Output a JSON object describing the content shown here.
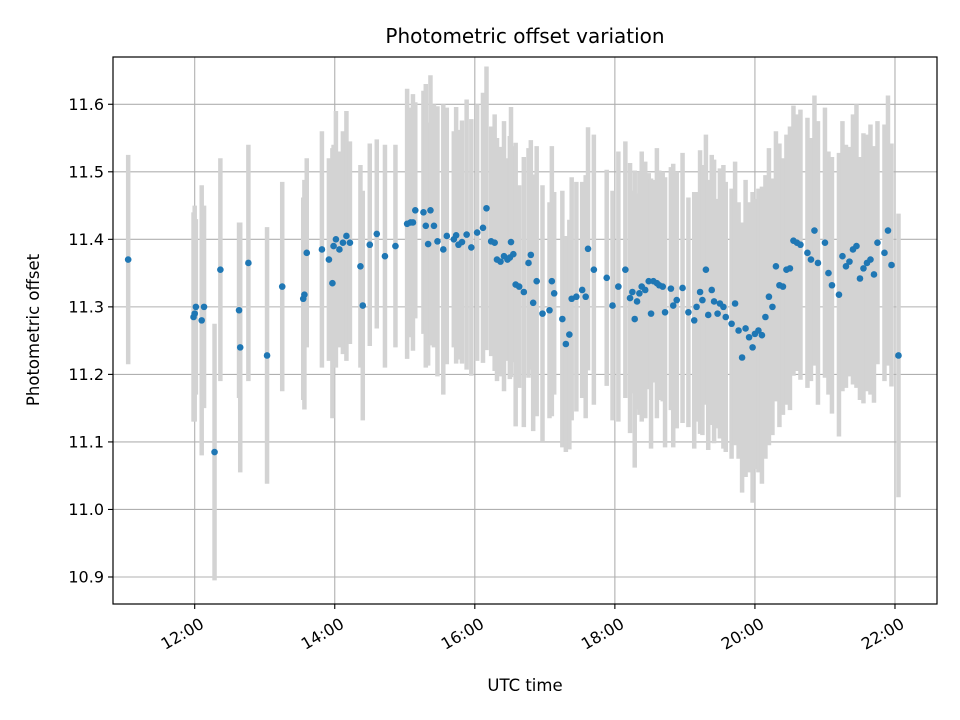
{
  "chart_data": {
    "type": "scatter",
    "title": "Photometric offset variation",
    "xlabel": "UTC time",
    "ylabel": "Photometric offset",
    "x_axis_type": "time",
    "xlim": [
      "10:50",
      "22:36"
    ],
    "ylim": [
      10.86,
      11.67
    ],
    "x_ticks": [
      "12:00",
      "14:00",
      "16:00",
      "18:00",
      "20:00",
      "22:00"
    ],
    "y_ticks": [
      10.9,
      11.0,
      11.1,
      11.2,
      11.3,
      11.4,
      11.5,
      11.6
    ],
    "y_tick_labels": [
      "10.9",
      "11.0",
      "11.1",
      "11.2",
      "11.3",
      "11.4",
      "11.5",
      "11.6"
    ],
    "grid": true,
    "colors": {
      "point": "#1f77b4",
      "errorbar": "#d3d3d3",
      "grid": "#b0b0b0"
    },
    "series": [
      {
        "x": [
          "11:03",
          "11:59",
          "12:00",
          "12:01",
          "12:06",
          "12:08",
          "12:17",
          "12:22",
          "12:38",
          "12:39",
          "12:46",
          "13:02",
          "13:15",
          "13:33",
          "13:34",
          "13:36",
          "13:49",
          "13:55",
          "13:58",
          "13:59",
          "14:01",
          "14:04",
          "14:07",
          "14:10",
          "14:13",
          "14:22",
          "14:24",
          "14:30",
          "14:36",
          "14:43",
          "14:52",
          "15:02",
          "15:05",
          "15:07",
          "15:09",
          "15:16",
          "15:18",
          "15:20",
          "15:22",
          "15:25",
          "15:28",
          "15:33",
          "15:36",
          "15:42",
          "15:44",
          "15:46",
          "15:49",
          "15:53",
          "15:57",
          "16:02",
          "16:07",
          "16:10",
          "16:14",
          "16:17",
          "16:19",
          "16:22",
          "16:25",
          "16:28",
          "16:30",
          "16:31",
          "16:33",
          "16:35",
          "16:38",
          "16:42",
          "16:46",
          "16:48",
          "16:50",
          "16:53",
          "16:58",
          "17:04",
          "17:06",
          "17:08",
          "17:15",
          "17:18",
          "17:21",
          "17:23",
          "17:27",
          "17:32",
          "17:35",
          "17:37",
          "17:42",
          "17:53",
          "17:58",
          "18:03",
          "18:09",
          "18:13",
          "18:15",
          "18:17",
          "18:19",
          "18:21",
          "18:23",
          "18:26",
          "18:29",
          "18:31",
          "18:33",
          "18:36",
          "18:38",
          "18:41",
          "18:43",
          "18:48",
          "18:50",
          "18:53",
          "18:58",
          "19:03",
          "19:08",
          "19:10",
          "19:13",
          "19:15",
          "19:18",
          "19:20",
          "19:23",
          "19:25",
          "19:28",
          "19:30",
          "19:33",
          "19:35",
          "19:40",
          "19:43",
          "19:46",
          "19:49",
          "19:52",
          "19:55",
          "19:58",
          "20:00",
          "20:03",
          "20:06",
          "20:09",
          "20:12",
          "20:15",
          "20:18",
          "20:21",
          "20:24",
          "20:27",
          "20:30",
          "20:33",
          "20:36",
          "20:39",
          "20:45",
          "20:48",
          "20:51",
          "20:54",
          "21:00",
          "21:03",
          "21:06",
          "21:12",
          "21:15",
          "21:18",
          "21:21",
          "21:24",
          "21:27",
          "21:30",
          "21:33",
          "21:36",
          "21:39",
          "21:42",
          "21:45",
          "21:51",
          "21:54",
          "21:57",
          "22:03"
        ],
        "y": [
          11.37,
          11.285,
          11.29,
          11.3,
          11.28,
          11.3,
          11.085,
          11.355,
          11.295,
          11.24,
          11.365,
          11.228,
          11.33,
          11.312,
          11.318,
          11.38,
          11.385,
          11.37,
          11.335,
          11.39,
          11.4,
          11.385,
          11.395,
          11.405,
          11.395,
          11.36,
          11.302,
          11.392,
          11.408,
          11.375,
          11.39,
          11.423,
          11.425,
          11.425,
          11.443,
          11.44,
          11.42,
          11.393,
          11.443,
          11.42,
          11.397,
          11.385,
          11.405,
          11.4,
          11.406,
          11.392,
          11.396,
          11.407,
          11.388,
          11.41,
          11.417,
          11.446,
          11.397,
          11.395,
          11.37,
          11.367,
          11.375,
          11.37,
          11.373,
          11.396,
          11.378,
          11.333,
          11.33,
          11.322,
          11.365,
          11.377,
          11.306,
          11.338,
          11.29,
          11.295,
          11.338,
          11.32,
          11.282,
          11.245,
          11.259,
          11.312,
          11.315,
          11.325,
          11.315,
          11.386,
          11.355,
          11.343,
          11.302,
          11.33,
          11.355,
          11.313,
          11.322,
          11.282,
          11.308,
          11.32,
          11.33,
          11.325,
          11.338,
          11.29,
          11.338,
          11.335,
          11.332,
          11.33,
          11.292,
          11.327,
          11.302,
          11.31,
          11.328,
          11.292,
          11.28,
          11.3,
          11.322,
          11.31,
          11.355,
          11.288,
          11.325,
          11.308,
          11.29,
          11.305,
          11.3,
          11.285,
          11.275,
          11.305,
          11.265,
          11.225,
          11.268,
          11.255,
          11.24,
          11.26,
          11.265,
          11.258,
          11.285,
          11.315,
          11.3,
          11.36,
          11.332,
          11.33,
          11.355,
          11.357,
          11.398,
          11.395,
          11.392,
          11.38,
          11.37,
          11.413,
          11.365,
          11.395,
          11.35,
          11.332,
          11.318,
          11.375,
          11.36,
          11.367,
          11.385,
          11.39,
          11.342,
          11.357,
          11.365,
          11.37,
          11.348,
          11.395,
          11.38,
          11.413,
          11.362,
          11.228
        ],
        "err": [
          0.155,
          0.155,
          0.16,
          0.13,
          0.2,
          0.15,
          0.19,
          0.165,
          0.13,
          0.185,
          0.175,
          0.19,
          0.155,
          0.15,
          0.17,
          0.14,
          0.175,
          0.15,
          0.2,
          0.15,
          0.19,
          0.145,
          0.165,
          0.185,
          0.15,
          0.15,
          0.17,
          0.15,
          0.14,
          0.165,
          0.15,
          0.2,
          0.17,
          0.19,
          0.16,
          0.18,
          0.21,
          0.18,
          0.2,
          0.18,
          0.2,
          0.215,
          0.19,
          0.16,
          0.19,
          0.17,
          0.18,
          0.2,
          0.19,
          0.19,
          0.2,
          0.21,
          0.17,
          0.19,
          0.18,
          0.17,
          0.2,
          0.15,
          0.18,
          0.2,
          0.16,
          0.21,
          0.15,
          0.2,
          0.17,
          0.17,
          0.19,
          0.2,
          0.19,
          0.16,
          0.2,
          0.15,
          0.19,
          0.16,
          0.17,
          0.18,
          0.17,
          0.16,
          0.18,
          0.18,
          0.2,
          0.16,
          0.17,
          0.2,
          0.19,
          0.2,
          0.15,
          0.22,
          0.16,
          0.18,
          0.2,
          0.19,
          0.16,
          0.2,
          0.15,
          0.2,
          0.17,
          0.17,
          0.2,
          0.18,
          0.21,
          0.19,
          0.2,
          0.17,
          0.19,
          0.17,
          0.21,
          0.2,
          0.2,
          0.2,
          0.2,
          0.21,
          0.17,
          0.2,
          0.21,
          0.2,
          0.2,
          0.21,
          0.19,
          0.2,
          0.22,
          0.2,
          0.23,
          0.2,
          0.21,
          0.22,
          0.21,
          0.22,
          0.19,
          0.2,
          0.21,
          0.19,
          0.2,
          0.21,
          0.2,
          0.19,
          0.2,
          0.2,
          0.18,
          0.2,
          0.21,
          0.2,
          0.18,
          0.19,
          0.21,
          0.2,
          0.18,
          0.17,
          0.2,
          0.21,
          0.18,
          0.2,
          0.19,
          0.2,
          0.19,
          0.18,
          0.19,
          0.2,
          0.18,
          0.21
        ]
      }
    ]
  }
}
